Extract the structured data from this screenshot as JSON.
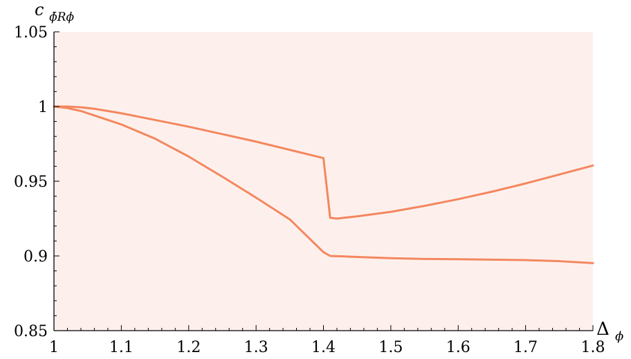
{
  "chart_data": {
    "type": "line",
    "title": "",
    "xlabel": "Δ",
    "xlabel_sub": "ϕ",
    "ylabel": "c",
    "ylabel_sub": "ϕ̄Rϕ",
    "xlim": [
      1,
      1.8
    ],
    "ylim": [
      0.85,
      1.05
    ],
    "x_ticks": [
      1,
      1.1,
      1.2,
      1.3,
      1.4,
      1.5,
      1.6,
      1.7,
      1.8
    ],
    "x_tick_labels": [
      "1",
      "1.1",
      "1.2",
      "1.3",
      "1.4",
      "1.5",
      "1.6",
      "1.7",
      "1.8"
    ],
    "y_ticks": [
      0.85,
      0.9,
      0.95,
      1,
      1.05
    ],
    "y_tick_labels": [
      "0.85",
      "0.9",
      "0.95",
      "1",
      "1.05"
    ],
    "grid": false,
    "legend": "none",
    "colors": {
      "curve": "#f4875f",
      "allowed_region": "#fdf0ec",
      "axis": "#000000"
    },
    "series": [
      {
        "values_x": [
          1.0,
          1.02,
          1.04,
          1.06,
          1.08,
          1.1,
          1.15,
          1.2,
          1.25,
          1.3,
          1.35,
          1.4,
          1.41,
          1.42,
          1.43,
          1.45,
          1.5,
          1.55,
          1.6,
          1.65,
          1.7,
          1.75,
          1.8
        ],
        "values_y": [
          1.0,
          1.0,
          0.9995,
          0.9985,
          0.997,
          0.9955,
          0.991,
          0.9865,
          0.9815,
          0.9765,
          0.971,
          0.9655,
          0.9255,
          0.925,
          0.9255,
          0.9265,
          0.9295,
          0.9335,
          0.938,
          0.943,
          0.9485,
          0.9545,
          0.9605
        ]
      },
      {
        "values_x": [
          1.0,
          1.02,
          1.04,
          1.06,
          1.08,
          1.1,
          1.15,
          1.2,
          1.25,
          1.3,
          1.35,
          1.4,
          1.41,
          1.42,
          1.43,
          1.45,
          1.5,
          1.55,
          1.6,
          1.65,
          1.7,
          1.75,
          1.8
        ],
        "values_y": [
          1.0,
          0.999,
          0.997,
          0.994,
          0.991,
          0.988,
          0.9785,
          0.9665,
          0.953,
          0.939,
          0.9245,
          0.9025,
          0.9,
          0.8998,
          0.8997,
          0.8993,
          0.8985,
          0.898,
          0.8978,
          0.8975,
          0.8972,
          0.8965,
          0.8952
        ]
      }
    ]
  }
}
